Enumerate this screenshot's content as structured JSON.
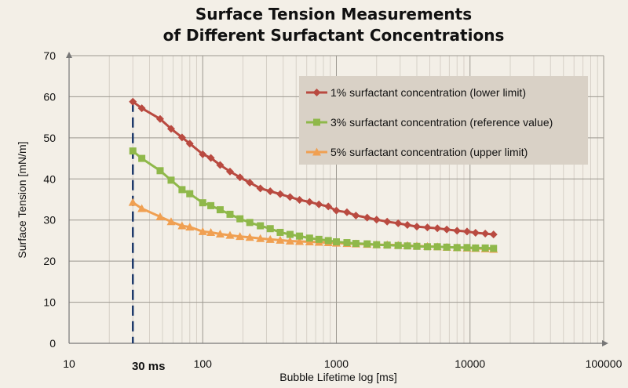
{
  "chart_data": {
    "type": "line",
    "title": [
      "Surface Tension Measurements",
      "of Different Surfactant Concentrations"
    ],
    "xlabel": "Bubble Lifetime log [ms]",
    "ylabel": "Surface Tension [mN/m]",
    "xscale": "log",
    "xlim": [
      10,
      100000
    ],
    "ylim": [
      0,
      70
    ],
    "xticks": [
      10,
      100,
      1000,
      10000,
      100000
    ],
    "xtick_labels": [
      "10",
      "100",
      "1000",
      "10000",
      "100000"
    ],
    "yticks": [
      0,
      10,
      20,
      30,
      40,
      50,
      60,
      70
    ],
    "ytick_labels": [
      "0",
      "10",
      "20",
      "30",
      "40",
      "50",
      "60",
      "70"
    ],
    "grid": true,
    "legend_position": "top-right",
    "annotation": {
      "text": "30 ms",
      "x": 30,
      "style": "dashed vertical line"
    },
    "x": [
      30,
      35,
      48,
      58,
      70,
      80,
      100,
      115,
      135,
      160,
      190,
      225,
      270,
      320,
      380,
      450,
      530,
      630,
      740,
      870,
      1000,
      1200,
      1400,
      1700,
      2000,
      2400,
      2900,
      3400,
      4000,
      4800,
      5700,
      6700,
      8000,
      9500,
      11000,
      13000,
      15000
    ],
    "series": [
      {
        "name": "1% surfactant concentration (lower limit)",
        "color": "#b94a40",
        "marker": "diamond",
        "values": [
          58.8,
          57.2,
          54.6,
          52.2,
          50.1,
          48.6,
          46.0,
          45.1,
          43.4,
          41.8,
          40.4,
          39.1,
          37.7,
          37.0,
          36.3,
          35.6,
          34.9,
          34.4,
          33.8,
          33.3,
          32.3,
          31.9,
          31.1,
          30.6,
          30.1,
          29.6,
          29.2,
          28.8,
          28.4,
          28.2,
          28.0,
          27.7,
          27.4,
          27.2,
          26.9,
          26.7,
          26.5
        ]
      },
      {
        "name": "3% surfactant concentration (reference value)",
        "color": "#8fb84a",
        "marker": "square",
        "values": [
          46.8,
          45.0,
          42.0,
          39.7,
          37.4,
          36.4,
          34.2,
          33.5,
          32.5,
          31.4,
          30.3,
          29.4,
          28.6,
          27.9,
          27.0,
          26.5,
          26.1,
          25.6,
          25.3,
          25.0,
          24.7,
          24.5,
          24.3,
          24.2,
          24.0,
          23.9,
          23.8,
          23.7,
          23.6,
          23.5,
          23.5,
          23.4,
          23.3,
          23.3,
          23.2,
          23.2,
          23.1
        ]
      },
      {
        "name": "5% surfactant concentration (upper limit)",
        "color": "#f0a052",
        "marker": "triangle",
        "values": [
          34.3,
          32.8,
          30.8,
          29.6,
          28.6,
          28.3,
          27.2,
          27.0,
          26.6,
          26.3,
          26.0,
          25.8,
          25.5,
          25.3,
          25.1,
          24.9,
          24.8,
          24.7,
          24.6,
          24.5,
          24.4,
          24.3,
          24.2,
          24.1,
          24.0,
          24.0,
          23.9,
          23.8,
          23.7,
          23.6,
          23.5,
          23.4,
          23.3,
          23.2,
          23.1,
          23.0,
          22.9
        ]
      }
    ]
  }
}
